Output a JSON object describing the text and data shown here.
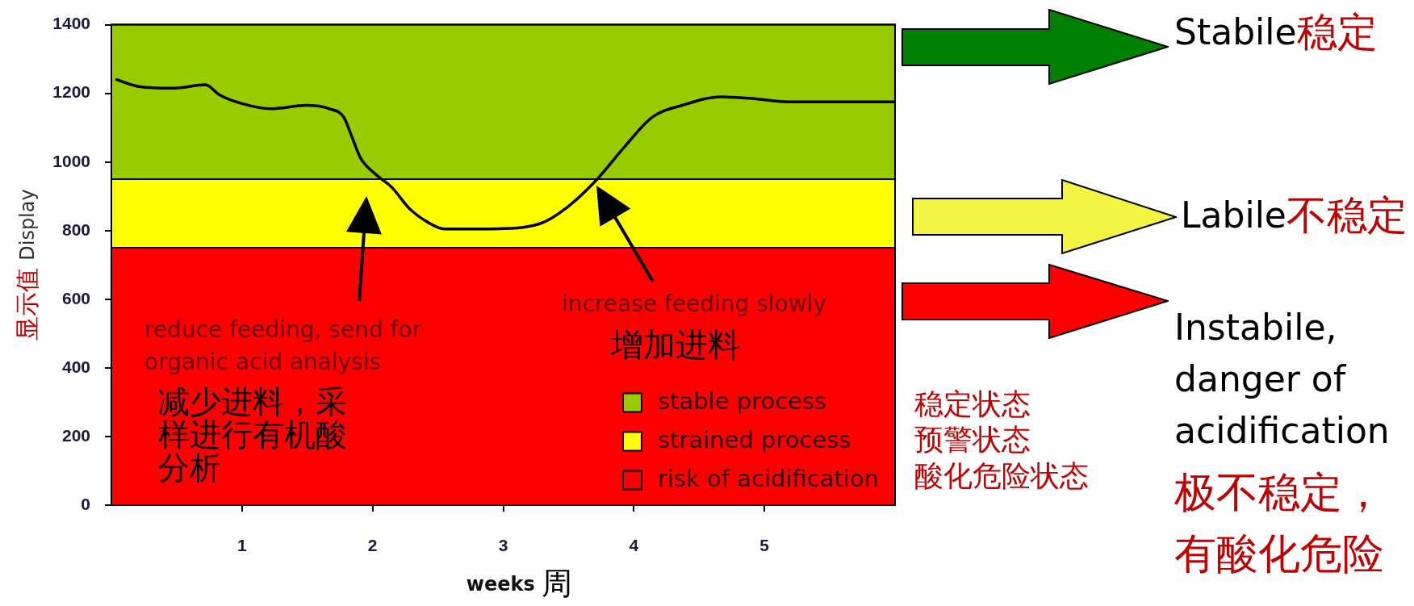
{
  "chart_data": {
    "type": "line",
    "xlabel": "weeks 周",
    "ylabel": "显示值 Display",
    "x": [
      0.04,
      0.21,
      0.47,
      0.72,
      0.83,
      1.0,
      1.22,
      1.49,
      1.67,
      1.78,
      1.84,
      1.91,
      2.02,
      2.15,
      2.28,
      2.42,
      2.55,
      2.9,
      3.28,
      3.48,
      3.72,
      3.92,
      4.14,
      4.37,
      4.67,
      4.9,
      5.2,
      5.56,
      5.78,
      6.0
    ],
    "values": [
      1240,
      1220,
      1215,
      1225,
      1195,
      1170,
      1155,
      1165,
      1155,
      1130,
      1075,
      1010,
      965,
      925,
      865,
      825,
      805,
      805,
      820,
      865,
      950,
      1040,
      1130,
      1165,
      1190,
      1185,
      1175,
      1175,
      1175,
      1175
    ],
    "color": "#000000",
    "xlim": [
      0,
      6
    ],
    "ylim": [
      0,
      1400
    ],
    "xticks": [
      1,
      2,
      3,
      4,
      5
    ],
    "yticks": [
      0,
      200,
      400,
      600,
      800,
      1000,
      1200,
      1400
    ],
    "bands": [
      {
        "axis": "y",
        "from": 950,
        "to": 1400,
        "label": "stable process",
        "color": "#99cc00"
      },
      {
        "axis": "y",
        "from": 750,
        "to": 950,
        "label": "strained process",
        "color": "#ffff00"
      },
      {
        "axis": "y",
        "from": 0,
        "to": 750,
        "label": "risk of acidification",
        "color": "#ff0000"
      }
    ],
    "legend": "bottom right",
    "annotations": [
      "reduce feeding, send for organic acid analysis",
      "减少进料，采样进行有机酸分析",
      "increase feeding slowly",
      "增加进料",
      "稳定状态",
      "预警状态",
      "酸化危险状态",
      "Stabile稳定",
      "Labile不稳定",
      "Instabile, danger of acidification",
      "极不稳定，有酸化危险"
    ]
  }
}
